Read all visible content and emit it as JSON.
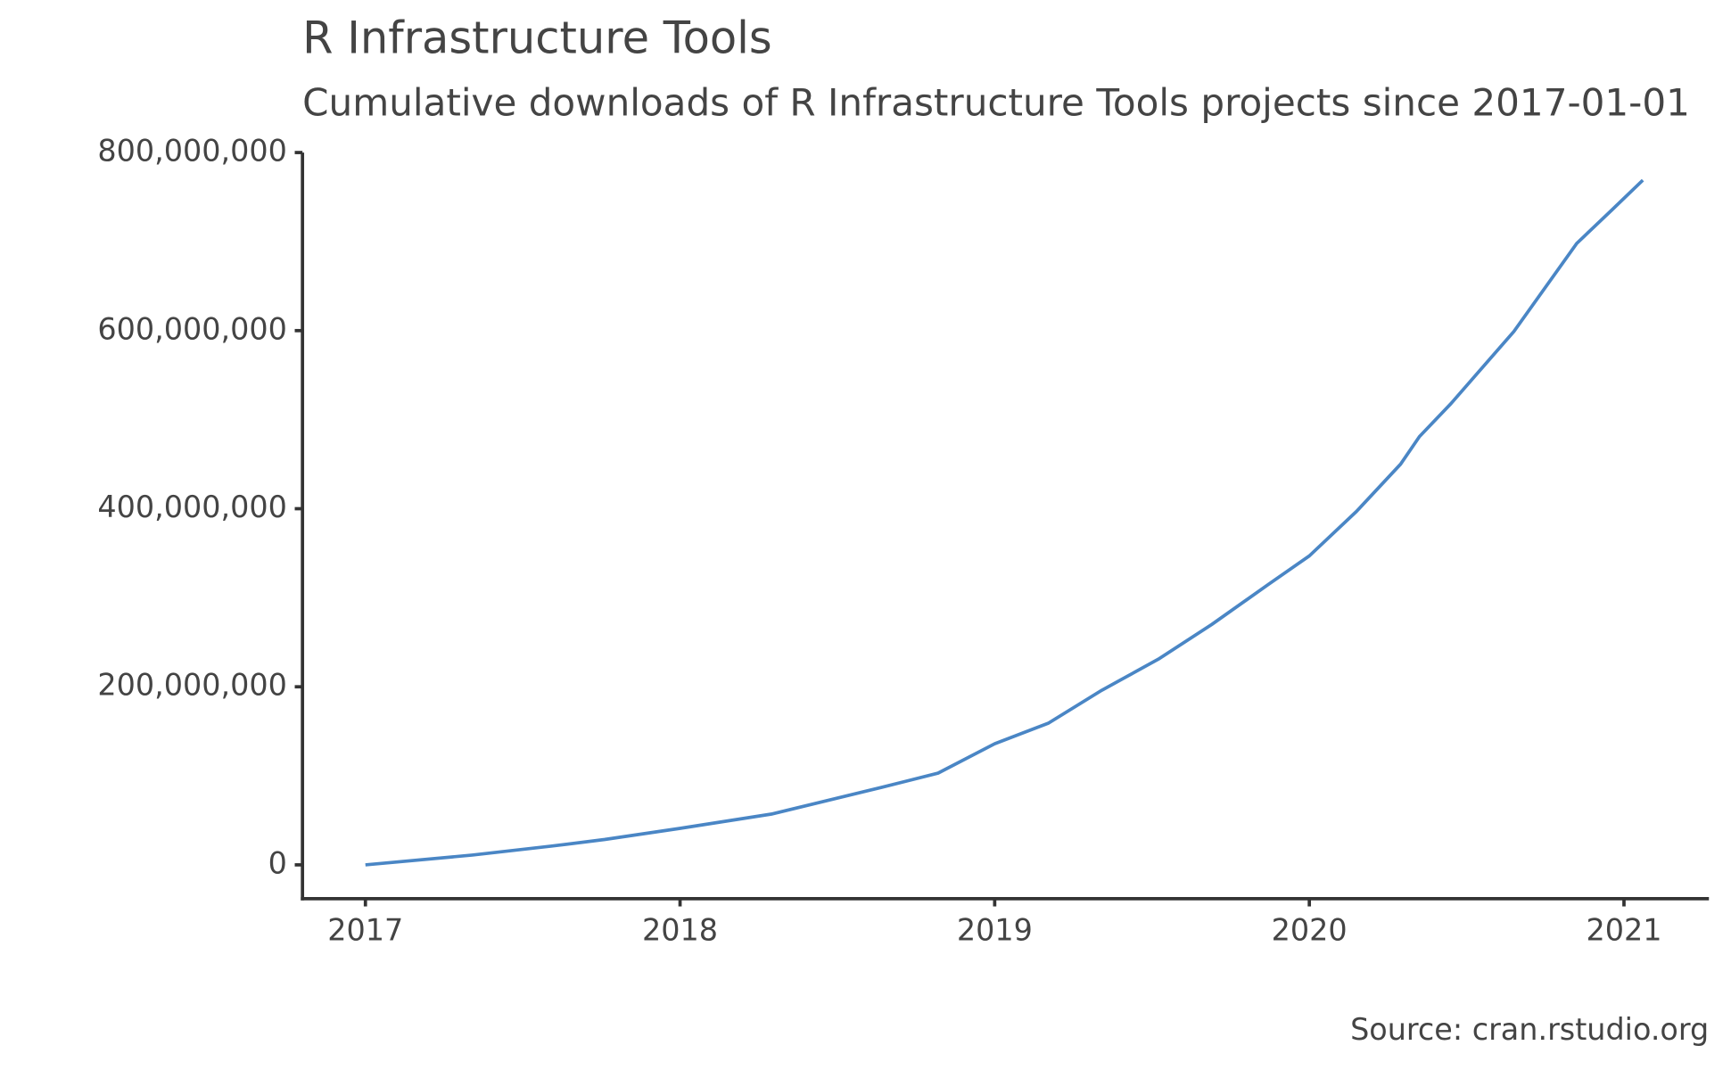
{
  "chart_data": {
    "type": "line",
    "title": "R Infrastructure Tools",
    "subtitle": "Cumulative downloads of R Infrastructure Tools projects since 2017-01-01",
    "source": "Source: cran.rstudio.org",
    "x": [
      2017.0,
      2017.34,
      2017.59,
      2017.76,
      2018.0,
      2018.29,
      2018.43,
      2018.64,
      2018.82,
      2019.0,
      2019.17,
      2019.34,
      2019.52,
      2019.69,
      2019.87,
      2020.0,
      2020.15,
      2020.29,
      2020.35,
      2020.45,
      2020.65,
      2020.85,
      2020.96,
      2021.06
    ],
    "series": [
      {
        "name": "R Infrastructure Tools",
        "color": "#4a86c5",
        "values": [
          0,
          11000000,
          21000000,
          28500000,
          41000000,
          57000000,
          69000000,
          87000000,
          103000000,
          136000000,
          159000000,
          196000000,
          231000000,
          270000000,
          315000000,
          347000000,
          397000000,
          450000000,
          481000000,
          518000000,
          599000000,
          698000000,
          735000000,
          769000000
        ]
      }
    ],
    "xlim": [
      2016.8,
      2021.27
    ],
    "xticks": [
      2017,
      2018,
      2019,
      2020,
      2021
    ],
    "ylim": [
      -38000000,
      800000000
    ],
    "yticks": [
      {
        "value": 0,
        "label": "0"
      },
      {
        "value": 200000000,
        "label": "200,000,000"
      },
      {
        "value": 400000000,
        "label": "400,000,000"
      },
      {
        "value": 600000000,
        "label": "600,000,000"
      },
      {
        "value": 800000000,
        "label": "800,000,000"
      }
    ],
    "grid": false
  }
}
